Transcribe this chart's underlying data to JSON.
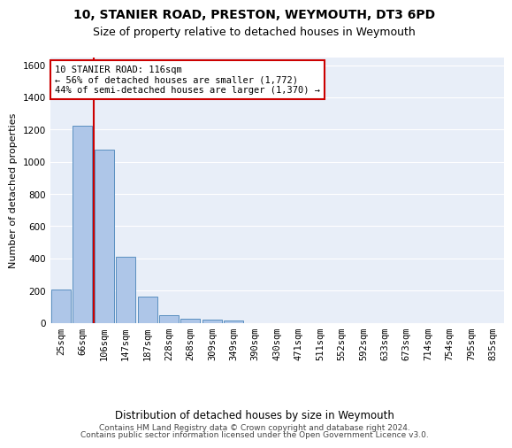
{
  "title": "10, STANIER ROAD, PRESTON, WEYMOUTH, DT3 6PD",
  "subtitle": "Size of property relative to detached houses in Weymouth",
  "xlabel": "Distribution of detached houses by size in Weymouth",
  "ylabel": "Number of detached properties",
  "categories": [
    "25sqm",
    "66sqm",
    "106sqm",
    "147sqm",
    "187sqm",
    "228sqm",
    "268sqm",
    "309sqm",
    "349sqm",
    "390sqm",
    "430sqm",
    "471sqm",
    "511sqm",
    "552sqm",
    "592sqm",
    "633sqm",
    "673sqm",
    "714sqm",
    "754sqm",
    "795sqm",
    "835sqm"
  ],
  "values": [
    205,
    1225,
    1075,
    410,
    163,
    45,
    27,
    18,
    14,
    0,
    0,
    0,
    0,
    0,
    0,
    0,
    0,
    0,
    0,
    0,
    0
  ],
  "bar_color": "#aec6e8",
  "bar_edge_color": "#5a8fc0",
  "property_line_color": "#cc0000",
  "annotation_text": "10 STANIER ROAD: 116sqm\n← 56% of detached houses are smaller (1,772)\n44% of semi-detached houses are larger (1,370) →",
  "annotation_box_color": "#cc0000",
  "ylim": [
    0,
    1650
  ],
  "yticks": [
    0,
    200,
    400,
    600,
    800,
    1000,
    1200,
    1400,
    1600
  ],
  "bg_color": "#e8eef8",
  "grid_color": "#ffffff",
  "footer_line1": "Contains HM Land Registry data © Crown copyright and database right 2024.",
  "footer_line2": "Contains public sector information licensed under the Open Government Licence v3.0.",
  "title_fontsize": 10,
  "subtitle_fontsize": 9,
  "axis_label_fontsize": 8.5,
  "tick_fontsize": 7.5,
  "annotation_fontsize": 7.5,
  "footer_fontsize": 6.5,
  "ylabel_fontsize": 8
}
